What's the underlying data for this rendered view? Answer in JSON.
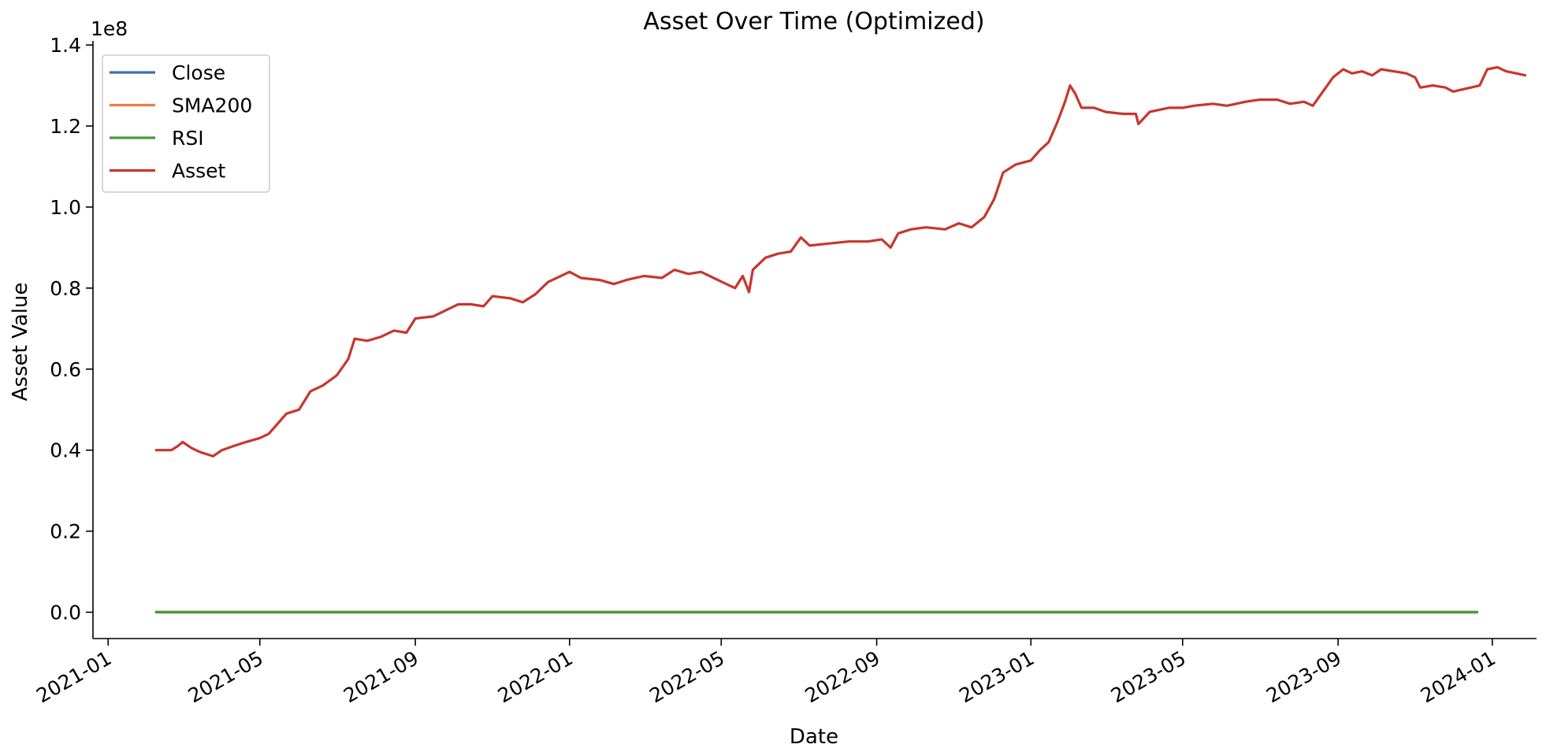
{
  "chart_data": {
    "type": "line",
    "title": "Asset Over Time (Optimized)",
    "xlabel": "Date",
    "ylabel": "Asset Value",
    "y_offset_label": "1e8",
    "xlim": [
      "2020-12-20",
      "2024-02-05"
    ],
    "ylim": [
      -0.065,
      1.41
    ],
    "y_scale_factor": 100000000,
    "x_ticks": [
      {
        "label": "2021-01",
        "date": "2021-01-01"
      },
      {
        "label": "2021-05",
        "date": "2021-05-01"
      },
      {
        "label": "2021-09",
        "date": "2021-09-01"
      },
      {
        "label": "2022-01",
        "date": "2022-01-01"
      },
      {
        "label": "2022-05",
        "date": "2022-05-01"
      },
      {
        "label": "2022-09",
        "date": "2022-09-01"
      },
      {
        "label": "2023-01",
        "date": "2023-01-01"
      },
      {
        "label": "2023-05",
        "date": "2023-05-01"
      },
      {
        "label": "2023-09",
        "date": "2023-09-01"
      },
      {
        "label": "2024-01",
        "date": "2024-01-01"
      }
    ],
    "y_ticks": [
      {
        "label": "0.0",
        "value": 0.0
      },
      {
        "label": "0.2",
        "value": 0.2
      },
      {
        "label": "0.4",
        "value": 0.4
      },
      {
        "label": "0.6",
        "value": 0.6
      },
      {
        "label": "0.8",
        "value": 0.8
      },
      {
        "label": "1.0",
        "value": 1.0
      },
      {
        "label": "1.2",
        "value": 1.2
      },
      {
        "label": "1.4",
        "value": 1.4
      }
    ],
    "legend": {
      "placement": "top-left"
    },
    "grid": false,
    "series": [
      {
        "name": "Close",
        "color": "#3a6fa8",
        "points": [
          [
            "2021-02-08",
            0.0005
          ],
          [
            "2023-12-20",
            0.0005
          ]
        ]
      },
      {
        "name": "SMA200",
        "color": "#e8803a",
        "points": [
          [
            "2021-02-08",
            0.0005
          ],
          [
            "2023-12-20",
            0.0005
          ]
        ]
      },
      {
        "name": "RSI",
        "color": "#4a9a3a",
        "points": [
          [
            "2021-02-08",
            0.0
          ],
          [
            "2023-12-20",
            0.0
          ]
        ]
      },
      {
        "name": "Asset",
        "color": "#c8362e",
        "points": [
          [
            "2021-02-08",
            0.4
          ],
          [
            "2021-02-20",
            0.4
          ],
          [
            "2021-02-25",
            0.41
          ],
          [
            "2021-03-01",
            0.42
          ],
          [
            "2021-03-08",
            0.405
          ],
          [
            "2021-03-15",
            0.395
          ],
          [
            "2021-03-25",
            0.385
          ],
          [
            "2021-04-01",
            0.4
          ],
          [
            "2021-04-10",
            0.41
          ],
          [
            "2021-04-20",
            0.42
          ],
          [
            "2021-05-01",
            0.43
          ],
          [
            "2021-05-08",
            0.44
          ],
          [
            "2021-05-15",
            0.465
          ],
          [
            "2021-05-22",
            0.49
          ],
          [
            "2021-06-01",
            0.5
          ],
          [
            "2021-06-10",
            0.545
          ],
          [
            "2021-06-20",
            0.56
          ],
          [
            "2021-07-01",
            0.585
          ],
          [
            "2021-07-10",
            0.625
          ],
          [
            "2021-07-15",
            0.675
          ],
          [
            "2021-07-25",
            0.67
          ],
          [
            "2021-08-05",
            0.68
          ],
          [
            "2021-08-15",
            0.695
          ],
          [
            "2021-08-25",
            0.69
          ],
          [
            "2021-09-01",
            0.725
          ],
          [
            "2021-09-15",
            0.73
          ],
          [
            "2021-09-25",
            0.745
          ],
          [
            "2021-10-05",
            0.76
          ],
          [
            "2021-10-15",
            0.76
          ],
          [
            "2021-10-25",
            0.755
          ],
          [
            "2021-11-01",
            0.78
          ],
          [
            "2021-11-15",
            0.775
          ],
          [
            "2021-11-25",
            0.765
          ],
          [
            "2021-12-05",
            0.785
          ],
          [
            "2021-12-15",
            0.815
          ],
          [
            "2022-01-01",
            0.84
          ],
          [
            "2022-01-10",
            0.825
          ],
          [
            "2022-01-25",
            0.82
          ],
          [
            "2022-02-05",
            0.81
          ],
          [
            "2022-02-15",
            0.82
          ],
          [
            "2022-03-01",
            0.83
          ],
          [
            "2022-03-15",
            0.825
          ],
          [
            "2022-03-25",
            0.845
          ],
          [
            "2022-04-05",
            0.835
          ],
          [
            "2022-04-15",
            0.84
          ],
          [
            "2022-04-25",
            0.825
          ],
          [
            "2022-05-05",
            0.81
          ],
          [
            "2022-05-12",
            0.8
          ],
          [
            "2022-05-18",
            0.83
          ],
          [
            "2022-05-23",
            0.79
          ],
          [
            "2022-05-26",
            0.845
          ],
          [
            "2022-06-05",
            0.875
          ],
          [
            "2022-06-15",
            0.885
          ],
          [
            "2022-06-25",
            0.89
          ],
          [
            "2022-07-03",
            0.925
          ],
          [
            "2022-07-10",
            0.905
          ],
          [
            "2022-07-25",
            0.91
          ],
          [
            "2022-08-10",
            0.915
          ],
          [
            "2022-08-25",
            0.915
          ],
          [
            "2022-09-05",
            0.92
          ],
          [
            "2022-09-12",
            0.9
          ],
          [
            "2022-09-18",
            0.935
          ],
          [
            "2022-09-28",
            0.945
          ],
          [
            "2022-10-10",
            0.95
          ],
          [
            "2022-10-25",
            0.945
          ],
          [
            "2022-11-05",
            0.96
          ],
          [
            "2022-11-15",
            0.95
          ],
          [
            "2022-11-25",
            0.975
          ],
          [
            "2022-12-03",
            1.02
          ],
          [
            "2022-12-10",
            1.085
          ],
          [
            "2022-12-20",
            1.105
          ],
          [
            "2023-01-01",
            1.115
          ],
          [
            "2023-01-08",
            1.14
          ],
          [
            "2023-01-15",
            1.16
          ],
          [
            "2023-01-22",
            1.21
          ],
          [
            "2023-01-28",
            1.26
          ],
          [
            "2023-02-01",
            1.3
          ],
          [
            "2023-02-05",
            1.28
          ],
          [
            "2023-02-10",
            1.245
          ],
          [
            "2023-02-20",
            1.245
          ],
          [
            "2023-03-01",
            1.235
          ],
          [
            "2023-03-15",
            1.23
          ],
          [
            "2023-03-25",
            1.23
          ],
          [
            "2023-03-27",
            1.205
          ],
          [
            "2023-04-05",
            1.235
          ],
          [
            "2023-04-20",
            1.245
          ],
          [
            "2023-05-01",
            1.245
          ],
          [
            "2023-05-10",
            1.25
          ],
          [
            "2023-05-25",
            1.255
          ],
          [
            "2023-06-05",
            1.25
          ],
          [
            "2023-06-20",
            1.26
          ],
          [
            "2023-07-01",
            1.265
          ],
          [
            "2023-07-15",
            1.265
          ],
          [
            "2023-07-25",
            1.255
          ],
          [
            "2023-08-05",
            1.26
          ],
          [
            "2023-08-12",
            1.25
          ],
          [
            "2023-08-20",
            1.285
          ],
          [
            "2023-08-28",
            1.32
          ],
          [
            "2023-09-05",
            1.34
          ],
          [
            "2023-09-12",
            1.33
          ],
          [
            "2023-09-20",
            1.335
          ],
          [
            "2023-09-28",
            1.325
          ],
          [
            "2023-10-05",
            1.34
          ],
          [
            "2023-10-15",
            1.335
          ],
          [
            "2023-10-25",
            1.33
          ],
          [
            "2023-11-01",
            1.32
          ],
          [
            "2023-11-05",
            1.295
          ],
          [
            "2023-11-15",
            1.3
          ],
          [
            "2023-11-25",
            1.295
          ],
          [
            "2023-12-01",
            1.285
          ],
          [
            "2023-12-08",
            1.29
          ],
          [
            "2023-12-15",
            1.295
          ],
          [
            "2023-12-22",
            1.3
          ],
          [
            "2023-12-28",
            1.34
          ],
          [
            "2024-01-05",
            1.345
          ],
          [
            "2024-01-12",
            1.335
          ],
          [
            "2024-01-20",
            1.33
          ],
          [
            "2024-01-27",
            1.325
          ]
        ]
      }
    ]
  }
}
